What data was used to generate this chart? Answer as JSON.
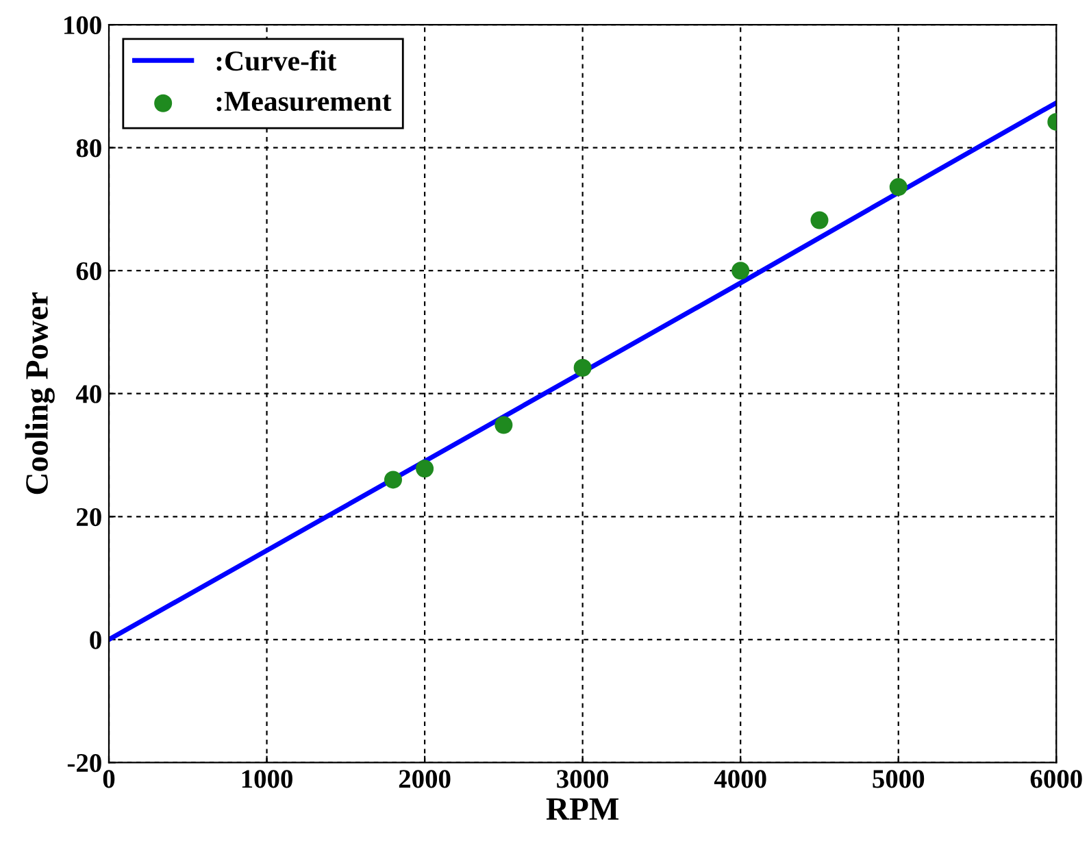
{
  "chart_data": {
    "type": "line",
    "xlabel": "RPM",
    "ylabel": "Cooling Power",
    "series": [
      {
        "name": ":Curve-fit",
        "color": "#0000ff",
        "x": [
          0,
          1000,
          2000,
          3000,
          4000,
          5000,
          6000
        ],
        "values": [
          0,
          14.5,
          29,
          43.5,
          58,
          72.7,
          87.3
        ],
        "marker": "none"
      },
      {
        "name": ":Measurement",
        "type": "scatter",
        "color": "#1f8a1f",
        "x": [
          1800,
          2000,
          2500,
          3000,
          4000,
          4500,
          5000,
          6000
        ],
        "values": [
          26,
          27.8,
          34.9,
          44.2,
          60,
          68.2,
          73.6,
          84.2
        ],
        "marker": "circle"
      }
    ],
    "xlim": [
      0,
      6000
    ],
    "xticks": [
      0,
      1000,
      2000,
      3000,
      4000,
      5000,
      6000
    ],
    "ylim": [
      -20,
      100
    ],
    "yticks": [
      -20,
      0,
      20,
      40,
      60,
      80,
      100
    ],
    "grid": true,
    "legend": "top left"
  }
}
